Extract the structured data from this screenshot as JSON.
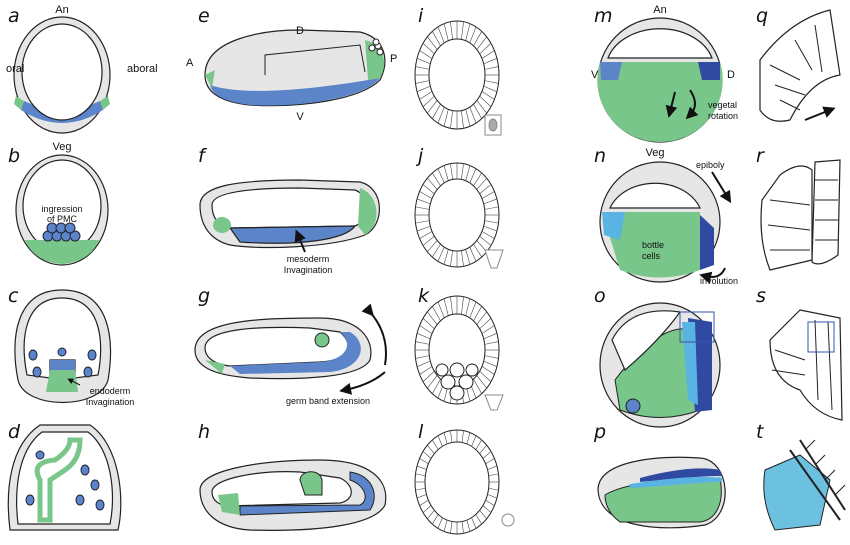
{
  "panels": [
    {
      "letter": "a",
      "labels": [
        "An",
        "oral",
        "aboral",
        "Veg"
      ]
    },
    {
      "letter": "b",
      "labels": [
        "ingression",
        "of PMC"
      ]
    },
    {
      "letter": "c",
      "labels": [
        "endoderm",
        "Invagination"
      ]
    },
    {
      "letter": "d"
    },
    {
      "letter": "e",
      "labels": [
        "D",
        "A",
        "P",
        "V"
      ]
    },
    {
      "letter": "f",
      "labels": [
        "mesoderm",
        "Invagination"
      ]
    },
    {
      "letter": "g",
      "labels": [
        "germ band extension"
      ]
    },
    {
      "letter": "h"
    },
    {
      "letter": "i"
    },
    {
      "letter": "j"
    },
    {
      "letter": "k"
    },
    {
      "letter": "l"
    },
    {
      "letter": "m",
      "labels": [
        "An",
        "V",
        "D",
        "vegetal",
        "rotation",
        "Veg"
      ]
    },
    {
      "letter": "n",
      "labels": [
        "epiboly",
        "bottle",
        "cells",
        "involution"
      ]
    },
    {
      "letter": "o"
    },
    {
      "letter": "p"
    },
    {
      "letter": "q"
    },
    {
      "letter": "r"
    },
    {
      "letter": "s"
    },
    {
      "letter": "t"
    }
  ]
}
